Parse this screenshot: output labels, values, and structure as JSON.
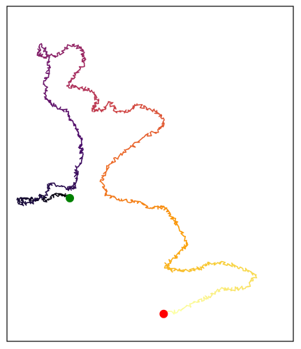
{
  "chart_data": {
    "type": "line",
    "title": "",
    "xlabel": "",
    "ylabel": "",
    "axes_ticks_visible": false,
    "grid": false,
    "colormap": "inferno",
    "color_by": "step",
    "segment_colors": [
      "#000004",
      "#1b0c41",
      "#4a0c6b",
      "#781c6d",
      "#a52c60",
      "#cf4446",
      "#ed6925",
      "#fb9b06",
      "#f7d13d",
      "#fcffa4"
    ],
    "x": [
      0.0,
      -10.5,
      -21.0,
      -30.5,
      -36.0,
      -44.5,
      -58.5,
      -68.0,
      -62.0,
      -47.5,
      -31.5,
      -27.0,
      -2.0,
      6.0,
      7.5,
      8.5,
      17.0,
      13.5,
      14.0,
      10.0,
      3.0,
      -5.0,
      -24.5,
      -31.0,
      -31.5,
      -27.5,
      -27.0,
      -36.0,
      -41.5,
      -37.0,
      -15.5,
      0.5,
      14.5,
      18.0,
      18.5,
      7.5,
      -3.5,
      10.5,
      28.0,
      36.5,
      29.0,
      41.0,
      53.0,
      58.0,
      75.5,
      86.0,
      102.5,
      115.5,
      121.5,
      113.5,
      91.5,
      68.5,
      50.0,
      40.0,
      47.0,
      67.0,
      88.0,
      106.0,
      121.5,
      129.5,
      139.5,
      151.5,
      144.0,
      134.0,
      123.0,
      130.5,
      146.0,
      169.5,
      180.0,
      203.5,
      222.0,
      239.0,
      227.5,
      208.0,
      197.0,
      179.0,
      164.0,
      143.0,
      121.0
    ],
    "y": [
      0.0,
      5.0,
      3.5,
      -3.5,
      2.5,
      -2.5,
      0.0,
      -2.0,
      -7.5,
      -4.5,
      4.0,
      18.0,
      11.5,
      13.0,
      24.5,
      35.0,
      54.0,
      62.0,
      74.0,
      83.0,
      96.5,
      107.5,
      117.0,
      125.5,
      146.0,
      159.0,
      175.5,
      190.0,
      181.0,
      176.0,
      177.0,
      189.5,
      187.5,
      177.0,
      168.0,
      153.0,
      140.0,
      137.0,
      134.0,
      120.0,
      109.5,
      109.5,
      119.0,
      108.0,
      107.5,
      116.0,
      111.5,
      104.5,
      93.0,
      85.0,
      73.0,
      56.5,
      40.0,
      23.0,
      4.0,
      -3.0,
      -4.0,
      -13.0,
      -10.5,
      -20.0,
      -34.5,
      -56.0,
      -64.5,
      -74.5,
      -84.0,
      -90.0,
      -89.5,
      -87.0,
      -80.5,
      -81.5,
      -87.0,
      -96.0,
      -110.5,
      -114.0,
      -112.0,
      -122.0,
      -129.5,
      -140.0,
      -144.0
    ],
    "markers": [
      {
        "name": "start",
        "x": 0.0,
        "y": 0.0,
        "color": "#008000"
      },
      {
        "name": "end",
        "x": 121.0,
        "y": -144.0,
        "color": "#ff0000"
      }
    ],
    "xlim": [
      -81.0,
      288.0
    ],
    "ylim": [
      -178.0,
      238.5
    ]
  }
}
